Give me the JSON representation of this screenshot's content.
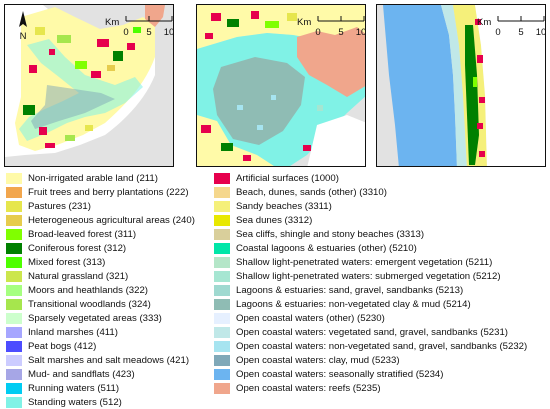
{
  "north_label": "N",
  "scalebar": {
    "unit": "Km",
    "ticks": [
      "0",
      "5",
      "10"
    ]
  },
  "colors": {
    "sea": "#e2e2e2",
    "land_white": "#ffffff"
  },
  "legend": {
    "left": [
      {
        "label": "Non-irrigated arable land (211)",
        "color": "#fffaa8"
      },
      {
        "label": "Fruit trees and berry plantations (222)",
        "color": "#f2a64d"
      },
      {
        "label": "Pastures (231)",
        "color": "#e6e64d"
      },
      {
        "label": "Heterogeneous agricultural areas (240)",
        "color": "#e6cc4d"
      },
      {
        "label": "Broad-leaved forest (311)",
        "color": "#80ff00"
      },
      {
        "label": "Coniferous forest (312)",
        "color": "#008000"
      },
      {
        "label": "Mixed forest (313)",
        "color": "#4dff00"
      },
      {
        "label": "Natural grassland (321)",
        "color": "#cce64d"
      },
      {
        "label": "Moors and heathlands (322)",
        "color": "#a6ff80"
      },
      {
        "label": "Transitional woodlands (324)",
        "color": "#a6e64d"
      },
      {
        "label": "Sparsely vegetated areas (333)",
        "color": "#ccffcc"
      },
      {
        "label": "Inland marshes (411)",
        "color": "#a6a6ff"
      },
      {
        "label": "Peat bogs (412)",
        "color": "#4d4dff"
      },
      {
        "label": "Salt marshes and salt meadows (421)",
        "color": "#ccccff"
      },
      {
        "label": "Mud- and sandflats (423)",
        "color": "#a6a6e6"
      },
      {
        "label": "Running waters (511)",
        "color": "#00ccf2"
      },
      {
        "label": "Standing waters (512)",
        "color": "#80f2e6"
      }
    ],
    "right": [
      {
        "label": "Artificial surfaces (1000)",
        "color": "#e6004d"
      },
      {
        "label": "Beach, dunes, sands (other) (3310)",
        "color": "#f5d78c"
      },
      {
        "label": "Sandy beaches (3311)",
        "color": "#f5f07a"
      },
      {
        "label": "Sea dunes (3312)",
        "color": "#e8e800"
      },
      {
        "label": "Sea cliffs, shingle and stony beaches (3313)",
        "color": "#d9cf9b"
      },
      {
        "label": "Coastal lagoons & estuaries (other) (5210)",
        "color": "#00e6a8"
      },
      {
        "label": "Shallow light-penetrated waters: emergent vegetation (5211)",
        "color": "#b4e6c8"
      },
      {
        "label": "Shallow light-penetrated waters: submerged vegetation (5212)",
        "color": "#a6e6d2"
      },
      {
        "label": "Lagoons & estuaries: sand, gravel, sandbanks (5213)",
        "color": "#9fd9d0"
      },
      {
        "label": "Lagoons & estuaries: non-vegetated clay & mud (5214)",
        "color": "#8fbcb4"
      },
      {
        "label": "Open coastal waters (other) (5230)",
        "color": "#e6f0ff"
      },
      {
        "label": "Open coastal waters: vegetated sand, gravel, sandbanks (5231)",
        "color": "#c0e8e8"
      },
      {
        "label": "Open coastal waters: non-vegetated sand, gravel, sandbanks (5232)",
        "color": "#a6e4f0"
      },
      {
        "label": "Open coastal waters: clay, mud (5233)",
        "color": "#7fa8b8"
      },
      {
        "label": "Open coastal waters: seasonally stratified (5234)",
        "color": "#6cb4f0"
      },
      {
        "label": "Open coastal waters: reefs (5235)",
        "color": "#f0a68c"
      }
    ]
  }
}
